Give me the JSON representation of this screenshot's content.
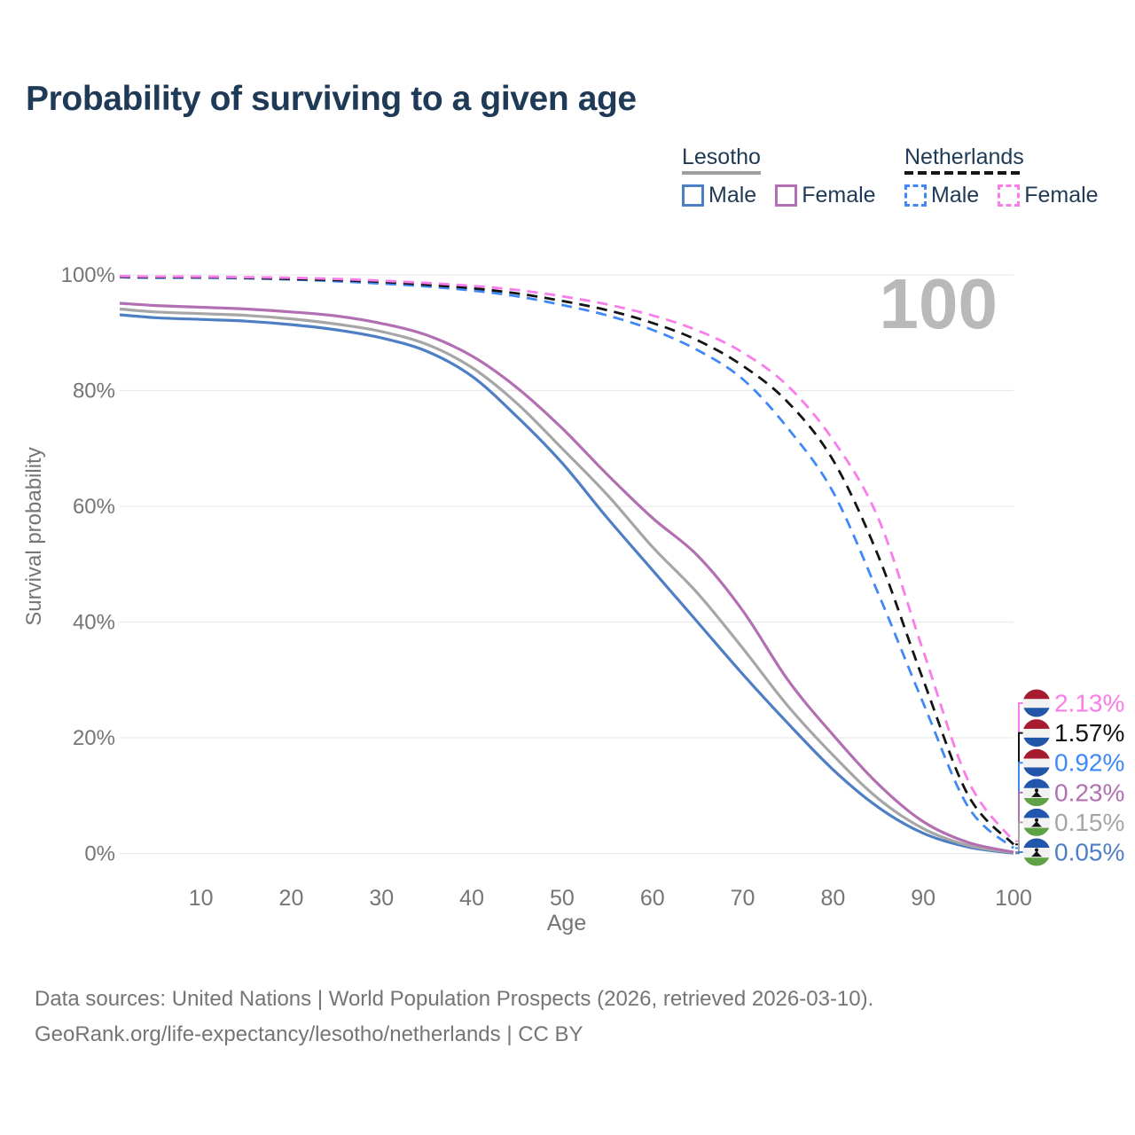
{
  "title": "Probability of surviving to a given age",
  "watermark_age": "100",
  "legend": {
    "groups": [
      {
        "name": "Lesotho",
        "underline_style": "solid",
        "underline_color": "#9e9e9e",
        "items": [
          {
            "label": "Male",
            "color": "#4e7fc4",
            "style": "solid"
          },
          {
            "label": "Female",
            "color": "#b26fb2",
            "style": "solid"
          }
        ]
      },
      {
        "name": "Netherlands",
        "underline_style": "dashed",
        "underline_color": "#151515",
        "items": [
          {
            "label": "Male",
            "color": "#3f88f5",
            "style": "dashed"
          },
          {
            "label": "Female",
            "color": "#f97ceb",
            "style": "dashed"
          }
        ]
      }
    ]
  },
  "chart_data": {
    "type": "line",
    "title": "Probability of surviving to a given age",
    "xlabel": "Age",
    "ylabel": "Survival probability",
    "xlim": [
      1,
      100
    ],
    "ylim": [
      0,
      100
    ],
    "grid": "horizontal",
    "legend_position": "top-right",
    "x_ticks": [
      10,
      20,
      30,
      40,
      50,
      60,
      70,
      80,
      90,
      100
    ],
    "y_ticks": [
      {
        "value": 0,
        "label": "0%"
      },
      {
        "value": 20,
        "label": "20%"
      },
      {
        "value": 40,
        "label": "40%"
      },
      {
        "value": 60,
        "label": "60%"
      },
      {
        "value": 80,
        "label": "80%"
      },
      {
        "value": 100,
        "label": "100%"
      }
    ],
    "ages": [
      1,
      5,
      10,
      15,
      20,
      25,
      30,
      35,
      40,
      45,
      50,
      55,
      60,
      65,
      70,
      75,
      80,
      85,
      90,
      95,
      100
    ],
    "series": [
      {
        "name": "Lesotho Male",
        "country": "Lesotho",
        "sex": "Male",
        "style": "solid",
        "color": "#4e7fc4",
        "flag": "lesotho",
        "end_label": "0.05%",
        "end_value": 0.05,
        "values": [
          93.1,
          92.6,
          92.3,
          92.0,
          91.4,
          90.5,
          89.1,
          86.8,
          82.5,
          75.5,
          67.5,
          58.0,
          49.0,
          40.0,
          31.0,
          22.5,
          14.5,
          8.0,
          3.5,
          1.1,
          0.05
        ]
      },
      {
        "name": "Lesotho Both sexes",
        "country": "Lesotho",
        "sex": "Both sexes",
        "style": "solid",
        "color": "#a6a6a6",
        "flag": "lesotho",
        "end_label": "0.15%",
        "end_value": 0.15,
        "values": [
          94.1,
          93.6,
          93.3,
          93.0,
          92.4,
          91.5,
          90.2,
          88.0,
          84.0,
          77.8,
          70.0,
          62.0,
          53.0,
          45.0,
          35.5,
          25.5,
          17.0,
          9.5,
          4.3,
          1.4,
          0.15
        ]
      },
      {
        "name": "Lesotho Female",
        "country": "Lesotho",
        "sex": "Female",
        "style": "solid",
        "color": "#b26fb2",
        "flag": "lesotho",
        "end_label": "0.23%",
        "end_value": 0.23,
        "values": [
          95.1,
          94.7,
          94.4,
          94.1,
          93.6,
          92.9,
          91.6,
          89.6,
          86.0,
          80.5,
          73.5,
          65.5,
          58.0,
          51.5,
          42.0,
          30.0,
          20.5,
          12.0,
          5.5,
          1.9,
          0.23
        ]
      },
      {
        "name": "Netherlands Male",
        "country": "Netherlands",
        "sex": "Male",
        "style": "dashed",
        "color": "#3f88f5",
        "flag": "netherlands",
        "end_label": "0.92%",
        "end_value": 0.92,
        "values": [
          99.6,
          99.5,
          99.5,
          99.4,
          99.2,
          98.9,
          98.5,
          98.0,
          97.3,
          96.3,
          94.8,
          93.0,
          90.5,
          87.0,
          82.0,
          73.5,
          62.5,
          45.0,
          26.0,
          8.0,
          0.92
        ]
      },
      {
        "name": "Netherlands Both sexes",
        "country": "Netherlands",
        "sex": "Both sexes",
        "style": "dashed",
        "color": "#141414",
        "flag": "netherlands",
        "end_label": "1.57%",
        "end_value": 1.57,
        "values": [
          99.7,
          99.6,
          99.6,
          99.5,
          99.3,
          99.1,
          98.8,
          98.3,
          97.7,
          96.8,
          95.5,
          93.9,
          91.7,
          88.7,
          84.3,
          78.0,
          68.0,
          51.5,
          30.0,
          10.0,
          1.57
        ]
      },
      {
        "name": "Netherlands Female",
        "country": "Netherlands",
        "sex": "Female",
        "style": "dashed",
        "color": "#f97ceb",
        "flag": "netherlands",
        "end_label": "2.13%",
        "end_value": 2.13,
        "values": [
          99.8,
          99.7,
          99.7,
          99.6,
          99.5,
          99.3,
          99.0,
          98.6,
          98.1,
          97.4,
          96.3,
          94.9,
          93.0,
          90.4,
          86.6,
          80.8,
          71.5,
          58.0,
          35.0,
          12.5,
          2.13
        ]
      }
    ]
  },
  "flags": {
    "netherlands": {
      "top": "#a61b30",
      "mid": "#f2f2f2",
      "bottom": "#2155a8"
    },
    "lesotho": {
      "top": "#2156ad",
      "mid": "#f2f2f2",
      "bottom": "#5da345",
      "emblem": "#111111"
    }
  },
  "colors": {
    "title": "#1f3a56",
    "axis_text": "#757575",
    "grid": "#eaeaea",
    "watermark": "#b9b9b9",
    "footer_text": "#757575"
  },
  "footer": {
    "line1": "Data sources: United Nations | World Population Prospects (2026, retrieved 2026-03-10).",
    "line2": "GeoRank.org/life-expectancy/lesotho/netherlands | CC BY"
  }
}
